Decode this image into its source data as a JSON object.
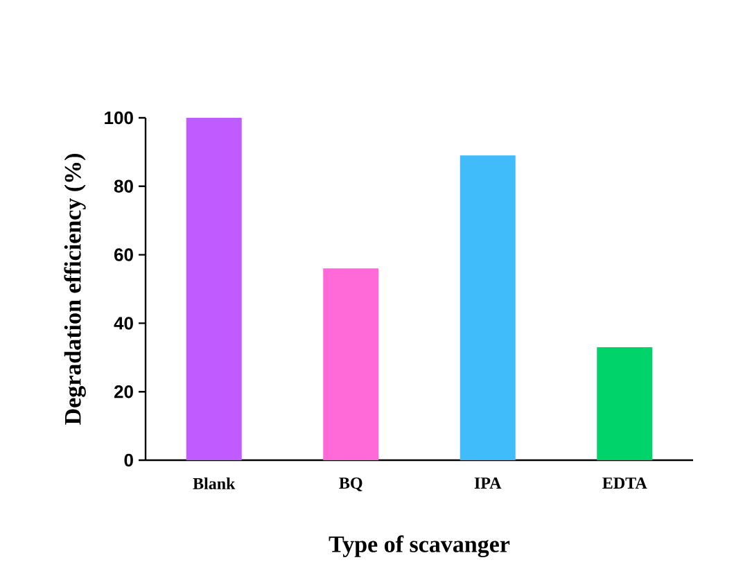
{
  "chart_data": {
    "type": "bar",
    "xlabel": "Type of scavanger",
    "ylabel": "Degradation efficiency (%)",
    "categories": [
      "Blank",
      "BQ",
      "IPA",
      "EDTA"
    ],
    "values": [
      100,
      56,
      89,
      33
    ],
    "colors": [
      "#c05cff",
      "#ff6ad8",
      "#40bcfa",
      "#00d36a"
    ],
    "ylim": [
      0,
      100
    ],
    "yticks": [
      0,
      20,
      40,
      60,
      80,
      100
    ],
    "grid": false
  }
}
